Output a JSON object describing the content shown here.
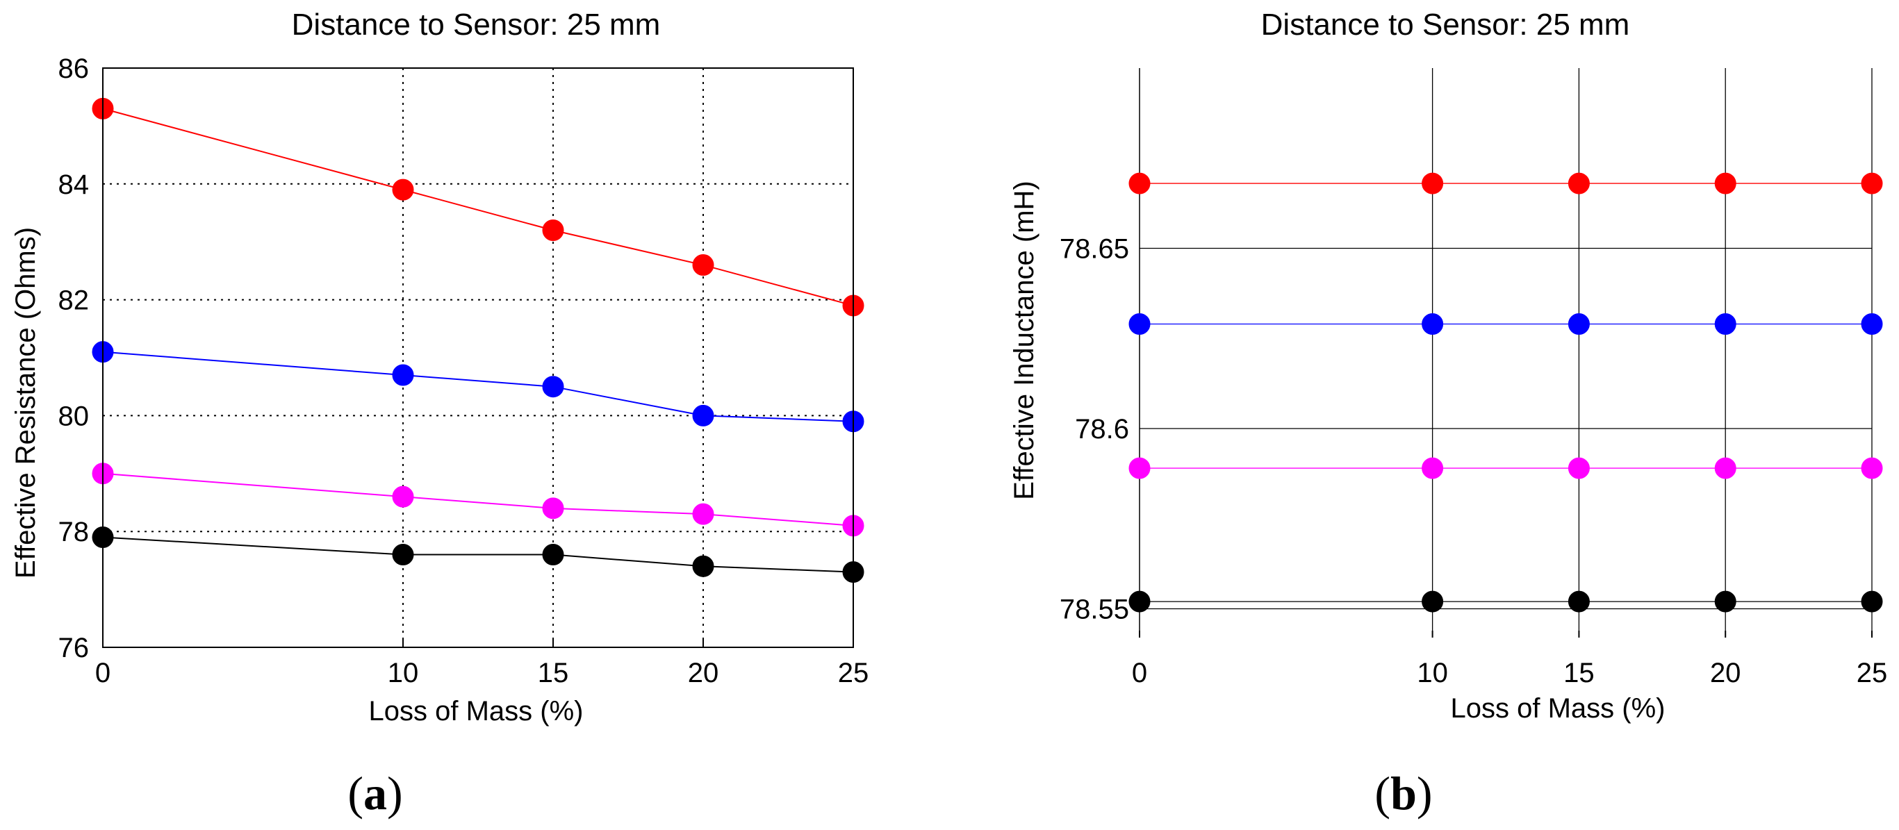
{
  "chart_data": [
    {
      "id": "a",
      "type": "line",
      "panel_label": "a",
      "title": "Distance to Sensor: 25 mm",
      "xlabel": "Loss of Mass (%)",
      "ylabel": "Effective Resistance (Ohms)",
      "grid": true,
      "grid_style": "dotted",
      "x": [
        0,
        10,
        15,
        20,
        25
      ],
      "x_ticks": [
        0,
        10,
        15,
        20,
        25
      ],
      "x_tick_labels": [
        "0",
        "10",
        "15",
        "20",
        "25"
      ],
      "ylim": [
        76,
        86
      ],
      "y_ticks": [
        76,
        78,
        80,
        82,
        84,
        86
      ],
      "y_tick_labels": [
        "76",
        "78",
        "80",
        "82",
        "84",
        "86"
      ],
      "series": [
        {
          "name": "red",
          "color": "#ff0000",
          "values": [
            85.3,
            83.9,
            83.2,
            82.6,
            81.9
          ]
        },
        {
          "name": "blue",
          "color": "#0000ff",
          "values": [
            81.1,
            80.7,
            80.5,
            80.0,
            79.9
          ]
        },
        {
          "name": "magenta",
          "color": "#ff00ff",
          "values": [
            79.0,
            78.6,
            78.4,
            78.3,
            78.1
          ]
        },
        {
          "name": "black",
          "color": "#000000",
          "values": [
            77.9,
            77.6,
            77.6,
            77.4,
            77.3
          ]
        }
      ]
    },
    {
      "id": "b",
      "type": "line",
      "panel_label": "b",
      "title": "Distance to Sensor: 25 mm",
      "xlabel": "Loss of Mass (%)",
      "ylabel": "Effective Inductance (mH)",
      "grid": true,
      "grid_style": "solid",
      "x": [
        0,
        10,
        15,
        20,
        25
      ],
      "x_ticks": [
        0,
        10,
        15,
        20,
        25
      ],
      "x_tick_labels": [
        "0",
        "10",
        "15",
        "20",
        "25"
      ],
      "ylim": [
        78.542,
        78.7
      ],
      "y_ticks": [
        78.55,
        78.6,
        78.65
      ],
      "y_tick_labels": [
        "78.55",
        "78.6",
        "78.65"
      ],
      "series": [
        {
          "name": "red",
          "color": "#ff0000",
          "values": [
            78.668,
            78.668,
            78.668,
            78.668,
            78.668
          ]
        },
        {
          "name": "blue",
          "color": "#0000ff",
          "values": [
            78.629,
            78.629,
            78.629,
            78.629,
            78.629
          ]
        },
        {
          "name": "magenta",
          "color": "#ff00ff",
          "values": [
            78.589,
            78.589,
            78.589,
            78.589,
            78.589
          ]
        },
        {
          "name": "black",
          "color": "#000000",
          "values": [
            78.552,
            78.552,
            78.552,
            78.552,
            78.552
          ]
        }
      ]
    }
  ]
}
